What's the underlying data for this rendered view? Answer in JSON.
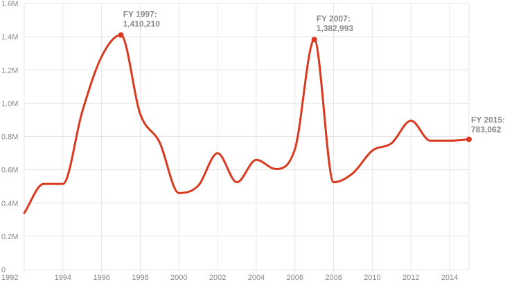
{
  "chart_data": {
    "type": "line",
    "title": "",
    "xlabel": "",
    "ylabel": "",
    "grid": true,
    "xlim": [
      1992,
      2015
    ],
    "ylim": [
      0,
      1600000
    ],
    "x_ticks": [
      1992,
      1994,
      1996,
      1998,
      2000,
      2002,
      2004,
      2006,
      2008,
      2010,
      2012,
      2014
    ],
    "x_tick_labels": [
      "1992",
      "1994",
      "1996",
      "1998",
      "2000",
      "2002",
      "2004",
      "2006",
      "2008",
      "2010",
      "2012",
      "2014"
    ],
    "y_ticks": [
      0,
      200000,
      400000,
      600000,
      800000,
      1000000,
      1200000,
      1400000,
      1600000
    ],
    "y_tick_labels": [
      "0",
      "0.2M",
      "0.4M",
      "0.6M",
      "0.8M",
      "1.0M",
      "1.2M",
      "1.4M",
      "1.6M"
    ],
    "series": [
      {
        "color": "#d9391e",
        "x": [
          1992,
          1993,
          1994,
          1995,
          1996,
          1997,
          1998,
          1999,
          2000,
          2001,
          2002,
          2003,
          2004,
          2005,
          2006,
          2007,
          2008,
          2009,
          2010,
          2011,
          2012,
          2013,
          2014,
          2015
        ],
        "y": [
          340000,
          515000,
          515000,
          950000,
          1280000,
          1410210,
          935000,
          765000,
          460000,
          505000,
          700000,
          525000,
          660000,
          605000,
          725000,
          1382993,
          525000,
          580000,
          715000,
          760000,
          895000,
          775000,
          775000,
          783062
        ]
      }
    ],
    "annotations": [
      {
        "x": 1997,
        "y": 1410210,
        "line1": "FY 1997:",
        "line2": "1,410,210"
      },
      {
        "x": 2007,
        "y": 1382993,
        "line1": "FY 2007:",
        "line2": "1,382,993"
      },
      {
        "x": 2015,
        "y": 783062,
        "line1": "FY 2015:",
        "line2": "783,062"
      }
    ]
  }
}
